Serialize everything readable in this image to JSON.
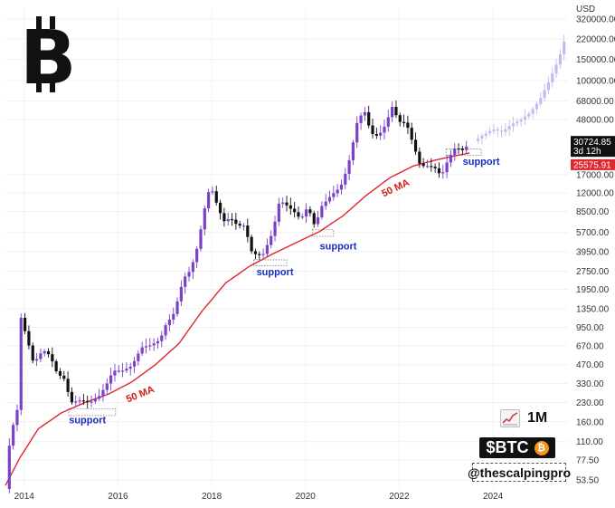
{
  "chart_data": {
    "type": "candlestick",
    "currency_label": "USD",
    "y_scale": "log",
    "ylim": [
      45,
      400000
    ],
    "xlim": [
      2013.6,
      2025.6
    ],
    "x_ticks": [
      {
        "value": 2014,
        "label": "2014"
      },
      {
        "value": 2016,
        "label": "2016"
      },
      {
        "value": 2018,
        "label": "2018"
      },
      {
        "value": 2020,
        "label": "2020"
      },
      {
        "value": 2022,
        "label": "2022"
      },
      {
        "value": 2024,
        "label": "2024"
      }
    ],
    "y_ticks": [
      {
        "value": 320000,
        "label": "320000.00"
      },
      {
        "value": 220000,
        "label": "220000.00"
      },
      {
        "value": 150000,
        "label": "150000.00"
      },
      {
        "value": 100000,
        "label": "100000.00"
      },
      {
        "value": 68000,
        "label": "68000.00"
      },
      {
        "value": 48000,
        "label": "48000.00"
      },
      {
        "value": 17000,
        "label": "17000.00"
      },
      {
        "value": 12000,
        "label": "12000.00"
      },
      {
        "value": 8500,
        "label": "8500.00"
      },
      {
        "value": 5700,
        "label": "5700.00"
      },
      {
        "value": 3950,
        "label": "3950.00"
      },
      {
        "value": 2750,
        "label": "2750.00"
      },
      {
        "value": 1950,
        "label": "1950.00"
      },
      {
        "value": 1350,
        "label": "1350.00"
      },
      {
        "value": 950,
        "label": "950.00"
      },
      {
        "value": 670,
        "label": "670.00"
      },
      {
        "value": 470,
        "label": "470.00"
      },
      {
        "value": 330,
        "label": "330.00"
      },
      {
        "value": 230,
        "label": "230.00"
      },
      {
        "value": 160,
        "label": "160.00"
      },
      {
        "value": 110,
        "label": "110.00"
      },
      {
        "value": 77.5,
        "label": "77.50"
      },
      {
        "value": 53.5,
        "label": "53.50"
      }
    ],
    "current_price": {
      "value": 30724.85,
      "label": "30724.85",
      "countdown": "3d 12h"
    },
    "ma_price": {
      "value": 25575.91,
      "label": "25575.91"
    },
    "price_path": [
      [
        2013.6,
        45
      ],
      [
        2013.7,
        120
      ],
      [
        2013.85,
        200
      ],
      [
        2013.93,
        1150
      ],
      [
        2014.05,
        800
      ],
      [
        2014.2,
        480
      ],
      [
        2014.4,
        620
      ],
      [
        2014.55,
        560
      ],
      [
        2014.7,
        400
      ],
      [
        2014.85,
        360
      ],
      [
        2015.0,
        230
      ],
      [
        2015.2,
        240
      ],
      [
        2015.4,
        230
      ],
      [
        2015.6,
        260
      ],
      [
        2015.75,
        320
      ],
      [
        2015.9,
        420
      ],
      [
        2016.1,
        420
      ],
      [
        2016.3,
        460
      ],
      [
        2016.5,
        650
      ],
      [
        2016.7,
        680
      ],
      [
        2016.9,
        750
      ],
      [
        2017.0,
        970
      ],
      [
        2017.2,
        1250
      ],
      [
        2017.4,
        2400
      ],
      [
        2017.55,
        2800
      ],
      [
        2017.7,
        4400
      ],
      [
        2017.85,
        9000
      ],
      [
        2017.97,
        14000
      ],
      [
        2018.1,
        10000
      ],
      [
        2018.25,
        7000
      ],
      [
        2018.4,
        7500
      ],
      [
        2018.55,
        6500
      ],
      [
        2018.7,
        6500
      ],
      [
        2018.85,
        4000
      ],
      [
        2018.97,
        3700
      ],
      [
        2019.1,
        3800
      ],
      [
        2019.3,
        5700
      ],
      [
        2019.45,
        10500
      ],
      [
        2019.6,
        9500
      ],
      [
        2019.75,
        8500
      ],
      [
        2019.9,
        7300
      ],
      [
        2020.05,
        9300
      ],
      [
        2020.2,
        6400
      ],
      [
        2020.35,
        9400
      ],
      [
        2020.55,
        11500
      ],
      [
        2020.75,
        13500
      ],
      [
        2020.9,
        19500
      ],
      [
        2021.0,
        29000
      ],
      [
        2021.1,
        45000
      ],
      [
        2021.25,
        58000
      ],
      [
        2021.4,
        37000
      ],
      [
        2021.55,
        35000
      ],
      [
        2021.7,
        43000
      ],
      [
        2021.85,
        61000
      ],
      [
        2022.0,
        46000
      ],
      [
        2022.15,
        45000
      ],
      [
        2022.3,
        30000
      ],
      [
        2022.45,
        20000
      ],
      [
        2022.6,
        20000
      ],
      [
        2022.75,
        19500
      ],
      [
        2022.9,
        16500
      ],
      [
        2023.05,
        23000
      ],
      [
        2023.2,
        28500
      ],
      [
        2023.35,
        27000
      ],
      [
        2023.5,
        30500
      ]
    ],
    "projection_path": [
      [
        2023.6,
        32000
      ],
      [
        2023.8,
        36000
      ],
      [
        2024.0,
        40000
      ],
      [
        2024.2,
        38000
      ],
      [
        2024.4,
        44000
      ],
      [
        2024.6,
        48000
      ],
      [
        2024.8,
        55000
      ],
      [
        2025.0,
        70000
      ],
      [
        2025.2,
        100000
      ],
      [
        2025.4,
        150000
      ],
      [
        2025.55,
        230000
      ]
    ],
    "ma_50": [
      [
        2013.6,
        48
      ],
      [
        2013.9,
        80
      ],
      [
        2014.3,
        140
      ],
      [
        2014.8,
        190
      ],
      [
        2015.3,
        230
      ],
      [
        2015.8,
        270
      ],
      [
        2016.3,
        340
      ],
      [
        2016.8,
        470
      ],
      [
        2017.3,
        700
      ],
      [
        2017.8,
        1300
      ],
      [
        2018.3,
        2200
      ],
      [
        2018.8,
        3000
      ],
      [
        2019.3,
        3800
      ],
      [
        2019.8,
        4700
      ],
      [
        2020.3,
        5800
      ],
      [
        2020.8,
        7800
      ],
      [
        2021.3,
        11500
      ],
      [
        2021.8,
        16000
      ],
      [
        2022.3,
        20000
      ],
      [
        2022.8,
        22500
      ],
      [
        2023.5,
        25575.91
      ]
    ],
    "support_zones": [
      {
        "x0": 2014.95,
        "x1": 2015.95,
        "y0": 180,
        "y1": 205
      },
      {
        "x0": 2018.9,
        "x1": 2019.6,
        "y0": 3050,
        "y1": 3400
      },
      {
        "x0": 2020.15,
        "x1": 2020.6,
        "y0": 5300,
        "y1": 6000
      },
      {
        "x0": 2023.0,
        "x1": 2023.75,
        "y0": 24500,
        "y1": 27500
      }
    ],
    "annotations": [
      {
        "id": "support-2015",
        "text": "support",
        "x": 2015.35,
        "y": 155,
        "color": "#1a2dc2"
      },
      {
        "id": "support-2019",
        "text": "support",
        "x": 2019.35,
        "y": 2550,
        "color": "#1a2dc2"
      },
      {
        "id": "support-2020",
        "text": "support",
        "x": 2020.7,
        "y": 4150,
        "color": "#1a2dc2"
      },
      {
        "id": "support-2023",
        "text": "support",
        "x": 2023.75,
        "y": 20500,
        "color": "#1a2dc2"
      },
      {
        "id": "ma-2016",
        "text": "50 MA",
        "x": 2016.5,
        "y": 255,
        "color": "#d61a1a",
        "rotate": -22
      },
      {
        "id": "ma-2022",
        "text": "50 MA",
        "x": 2021.95,
        "y": 12500,
        "color": "#d61a1a",
        "rotate": -25
      }
    ],
    "colors": {
      "candle": "#7b42c9",
      "candle_bear": "#111111",
      "projection": "#c9b8ee",
      "ma": "#e0262f",
      "support_text": "#1a2dc2",
      "price_box": "#111111",
      "ma_box": "#e0262f"
    }
  },
  "logo": {
    "glyph": "B",
    "icon": "bitcoin-logo-icon"
  },
  "timeframe": {
    "label": "1M",
    "icon": "chart-increasing-icon"
  },
  "ticker": {
    "label": "$BTC",
    "coin_glyph": "₿",
    "icon": "bitcoin-coin-icon"
  },
  "handle": "@thescalpingpro"
}
